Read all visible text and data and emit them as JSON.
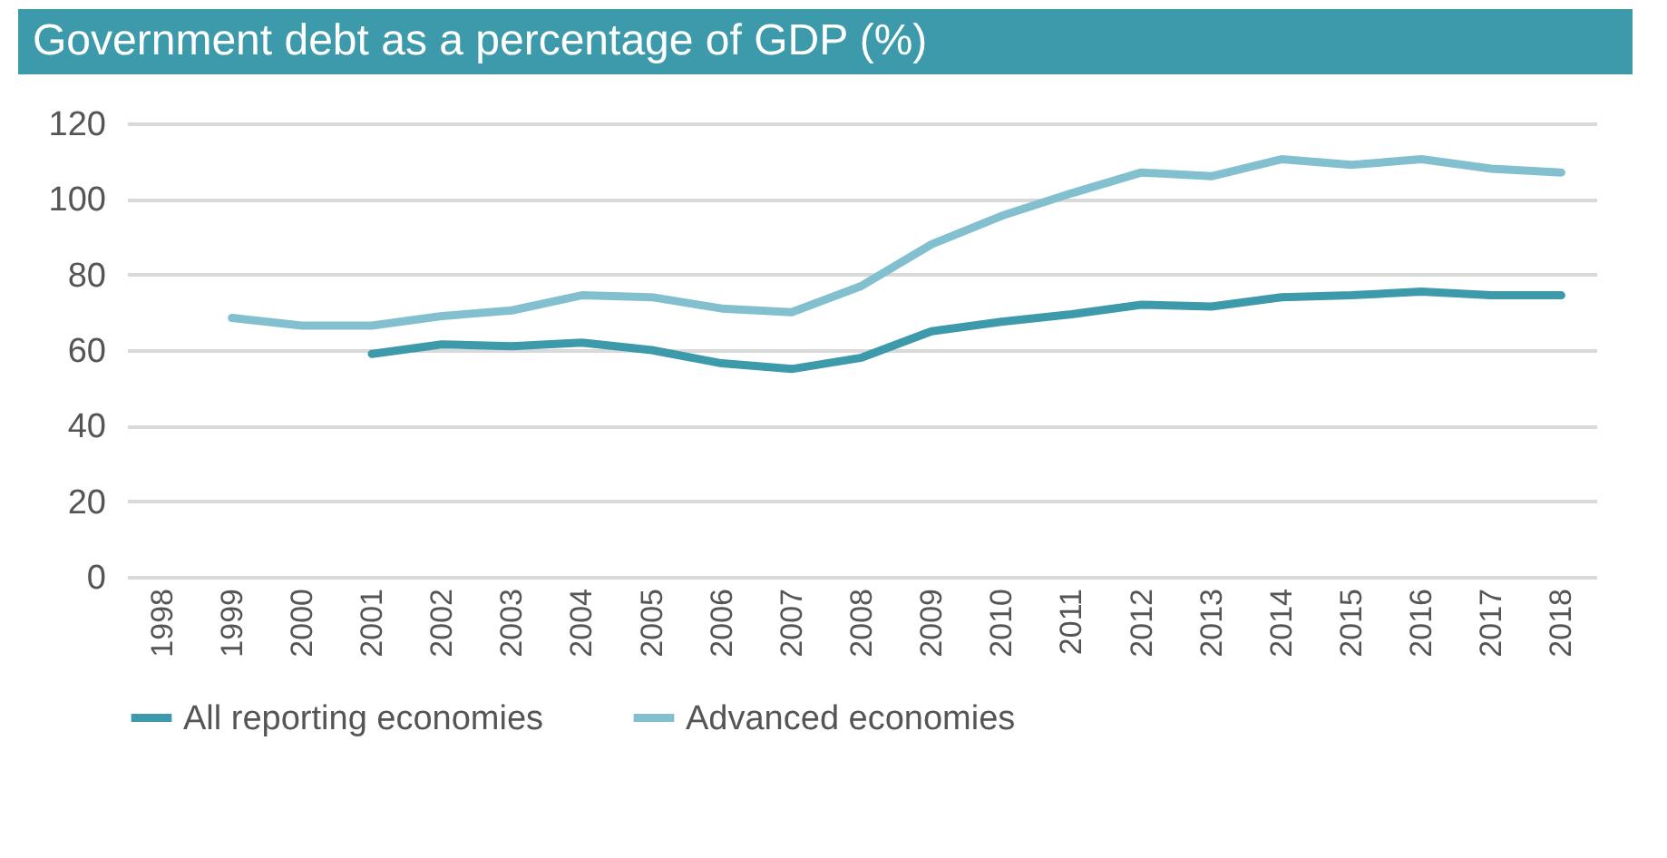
{
  "chart_data": {
    "type": "line",
    "title": "Government debt as a percentage of GDP (%)",
    "categories": [
      "1998",
      "1999",
      "2000",
      "2001",
      "2002",
      "2003",
      "2004",
      "2005",
      "2006",
      "2007",
      "2008",
      "2009",
      "2010",
      "2011",
      "2012",
      "2013",
      "2014",
      "2015",
      "2016",
      "2017",
      "2018"
    ],
    "series": [
      {
        "name": "All reporting economies",
        "color": "#3d9aab",
        "values": [
          null,
          null,
          null,
          59,
          61.5,
          61,
          62,
          60,
          56.5,
          55,
          58,
          65,
          67.5,
          69.5,
          72,
          71.5,
          74,
          74.5,
          75.5,
          74.5,
          74.5
        ]
      },
      {
        "name": "Advanced economies",
        "color": "#83c0cf",
        "values": [
          null,
          68.5,
          66.5,
          66.5,
          69,
          70.5,
          74.5,
          74,
          71,
          70,
          77,
          88,
          95.5,
          101.5,
          107,
          106,
          110.5,
          109,
          110.5,
          108,
          107
        ]
      }
    ],
    "ylim": [
      0,
      120
    ],
    "yticks": [
      0,
      20,
      40,
      60,
      80,
      100,
      120
    ],
    "grid": "y",
    "legend": "bottom",
    "marker": "none",
    "line_style": "solid"
  }
}
